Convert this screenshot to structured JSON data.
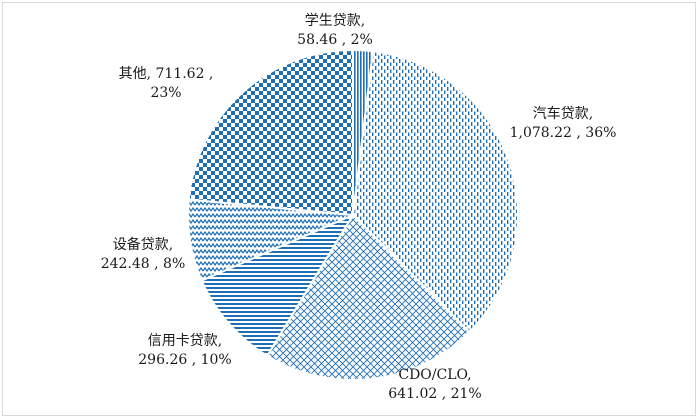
{
  "chart_data": {
    "type": "pie",
    "title": "",
    "colors": {
      "slice": "#1F6FB5",
      "background": "#ffffff",
      "edge": "#ffffff"
    },
    "slices": [
      {
        "name": "学生贷款",
        "value": 58.46,
        "percent": "2%",
        "value_label": "58.46",
        "pattern": "dense-vertical"
      },
      {
        "name": "汽车贷款",
        "value": 1078.22,
        "percent": "36%",
        "value_label": "1,078.22",
        "pattern": "dashed-vertical"
      },
      {
        "name": "CDO/CLO",
        "value": 641.02,
        "percent": "21%",
        "value_label": "641.02",
        "pattern": "diagonal-cross"
      },
      {
        "name": "信用卡贷款",
        "value": 296.26,
        "percent": "10%",
        "value_label": "296.26",
        "pattern": "horizontal-lines"
      },
      {
        "name": "设备贷款",
        "value": 242.48,
        "percent": "8%",
        "value_label": "242.48",
        "pattern": "zigzag"
      },
      {
        "name": "其他",
        "value": 711.62,
        "percent": "23%",
        "value_label": "711.62",
        "pattern": "checkerboard"
      }
    ],
    "labels": [
      {
        "line1": "学生贷款,",
        "line2": "58.46 , 2%"
      },
      {
        "line1": "汽车贷款,",
        "line2": "1,078.22 , 36%"
      },
      {
        "line1": "CDO/CLO,",
        "line2": "641.02 , 21%"
      },
      {
        "line1": "信用卡贷款,",
        "line2": "296.26 , 10%"
      },
      {
        "line1": "设备贷款,",
        "line2": "242.48 , 8%"
      },
      {
        "line1": "其他, 711.62 ,",
        "line2": "23%"
      }
    ]
  }
}
